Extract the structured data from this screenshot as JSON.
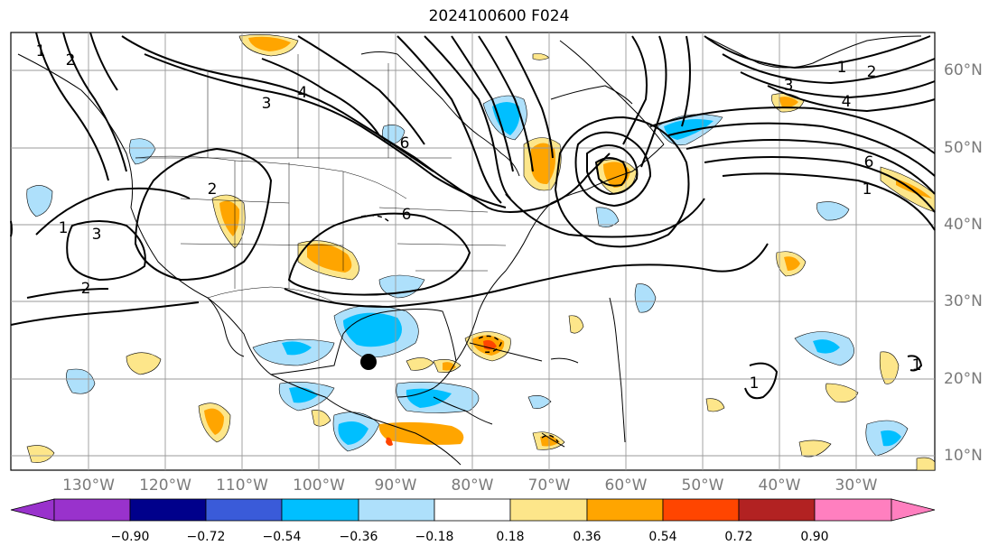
{
  "title": "2024100600 F024",
  "lon_labels": [
    "130°W",
    "120°W",
    "110°W",
    "100°W",
    "90°W",
    "80°W",
    "70°W",
    "60°W",
    "50°W",
    "40°W",
    "30°W"
  ],
  "lat_labels": [
    "60°N",
    "50°N",
    "40°N",
    "30°N",
    "20°N",
    "10°N"
  ],
  "colorbar": {
    "labels": [
      "−0.90",
      "−0.72",
      "−0.54",
      "−0.36",
      "−0.18",
      "0.18",
      "0.36",
      "0.54",
      "0.72",
      "0.90"
    ],
    "colors": [
      "#9932cc",
      "#00008b",
      "#3a5bd9",
      "#00bfff",
      "#aee0fb",
      "#ffffff",
      "#fde68a",
      "#ffa500",
      "#ff4500",
      "#b22222",
      "#ff7fbf"
    ]
  },
  "contour_labels": [
    "1",
    "2",
    "3",
    "4",
    "6",
    "6",
    "1",
    "2",
    "3",
    "4",
    "6",
    "1",
    "2",
    "3",
    "1",
    "2",
    "1",
    "1"
  ],
  "marker": {
    "label": "storm-center"
  }
}
